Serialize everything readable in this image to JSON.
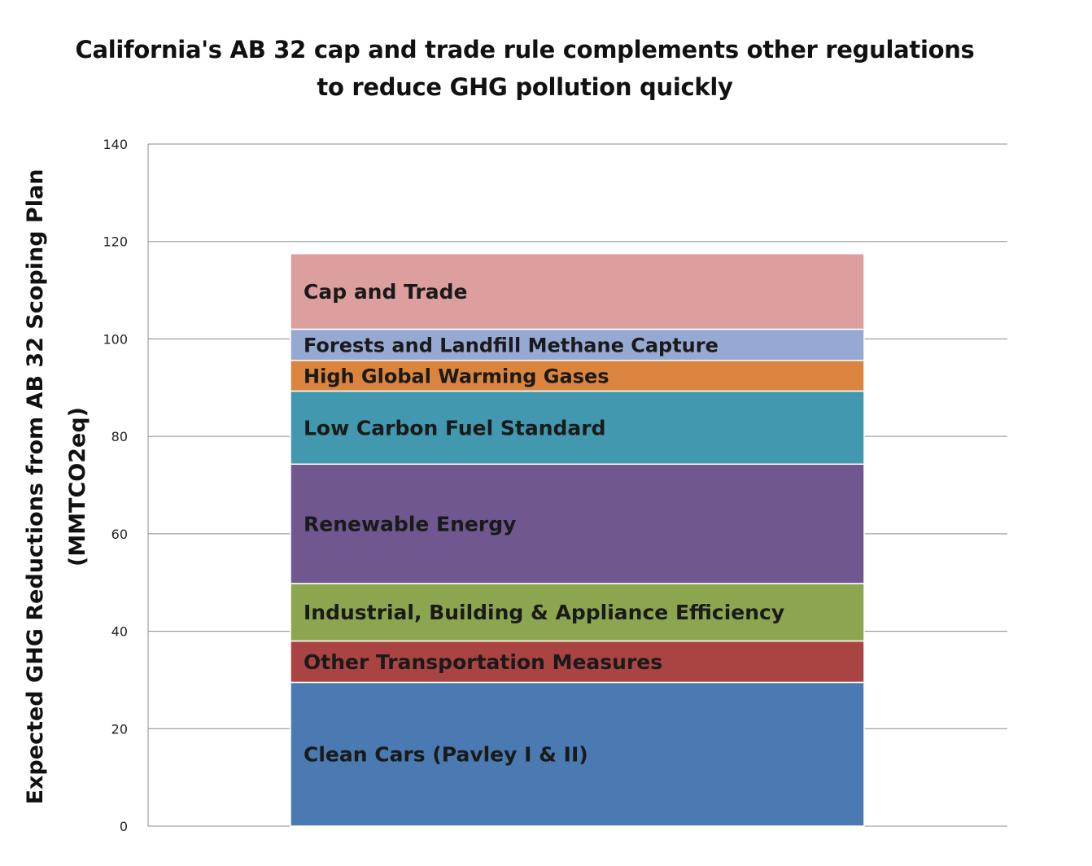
{
  "chart_data": {
    "type": "bar",
    "stacked": true,
    "title_lines": [
      "California's AB 32 cap and trade rule complements other regulations",
      "to reduce GHG pollution quickly"
    ],
    "xlabel": "",
    "ylabel_lines": [
      "Expected GHG Reductions from AB 32 Scoping Plan",
      "(MMTCO2eq)"
    ],
    "ylim": [
      0,
      140
    ],
    "y_ticks": [
      0,
      20,
      40,
      60,
      80,
      100,
      120,
      140
    ],
    "grid": true,
    "legend": "none",
    "series": [
      {
        "name": "Clean Cars (Pavley I & II)",
        "value": 29.5,
        "color": "#4A7AB1"
      },
      {
        "name": "Other Transportation Measures",
        "value": 8.5,
        "color": "#A94442"
      },
      {
        "name": "Industrial, Building & Appliance Efficiency",
        "value": 11.8,
        "color": "#8CA650"
      },
      {
        "name": "Renewable Energy",
        "value": 24.5,
        "color": "#70578F"
      },
      {
        "name": "Low Carbon Fuel Standard",
        "value": 15.0,
        "color": "#4298AE"
      },
      {
        "name": "High Global Warming Gases",
        "value": 6.3,
        "color": "#DB843D"
      },
      {
        "name": "Forests and Landfill Methane Capture",
        "value": 6.4,
        "color": "#95A9D3"
      },
      {
        "name": "Cap and Trade",
        "value": 15.5,
        "color": "#DD9E9E"
      }
    ]
  }
}
